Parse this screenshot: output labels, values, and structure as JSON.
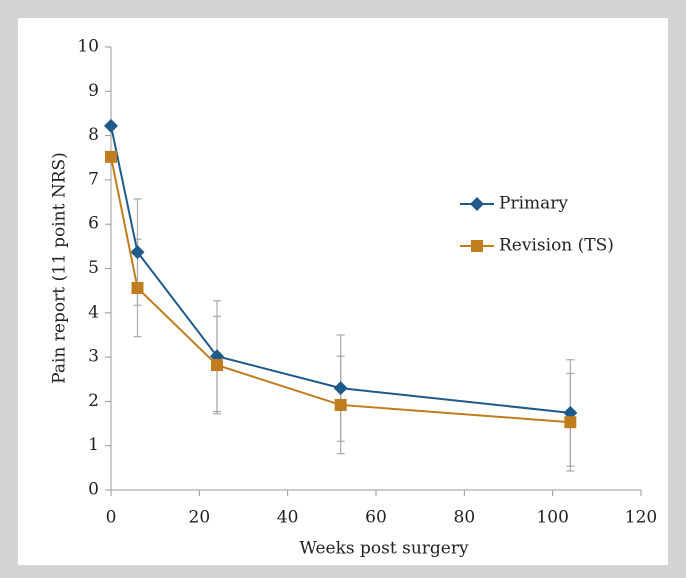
{
  "chart_data": {
    "type": "line",
    "x_label": "Weeks post surgery",
    "y_label": "Pain report (11 point NRS)",
    "x": [
      0,
      6,
      24,
      52,
      104
    ],
    "series": [
      {
        "name": "Primary",
        "color": "#1f5a8a",
        "marker": "diamond",
        "values": [
          8.22,
          5.37,
          3.02,
          2.3,
          1.74
        ],
        "errors": [
          null,
          1.2,
          1.25,
          1.2,
          1.2
        ]
      },
      {
        "name": "Revision (TS)",
        "color": "#c07d1e",
        "marker": "square",
        "values": [
          7.52,
          4.56,
          2.82,
          1.92,
          1.53
        ],
        "errors": [
          null,
          1.1,
          1.1,
          1.1,
          1.1
        ]
      }
    ],
    "xlim": [
      0,
      120
    ],
    "xticks": [
      0,
      20,
      40,
      60,
      80,
      100,
      120
    ],
    "ylim": [
      0,
      10
    ],
    "yticks": [
      0,
      1,
      2,
      3,
      4,
      5,
      6,
      7,
      8,
      9,
      10
    ],
    "legend": "right"
  }
}
